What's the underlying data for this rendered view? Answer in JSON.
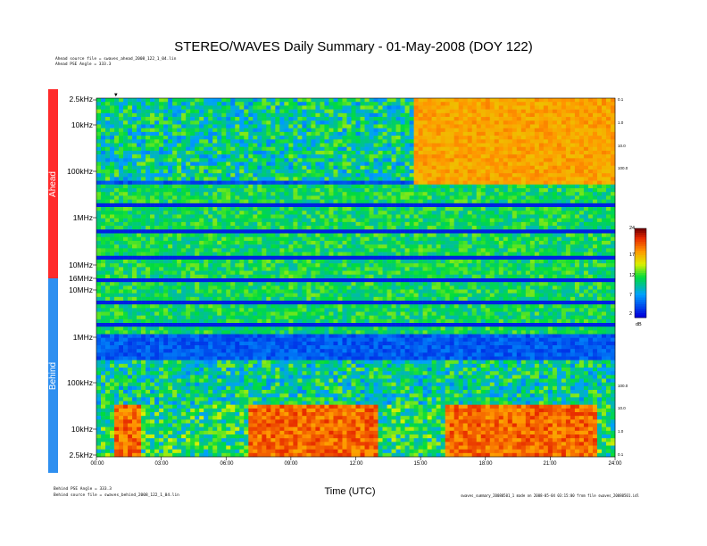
{
  "title": "STEREO/WAVES Daily Summary - 01-May-2008 (DOY 122)",
  "header_notes": [
    "Ahead source file = swaves_ahead_2008_122_1_04.lin",
    "Ahead PSE Angle = 333.3"
  ],
  "footer_notes": [
    "Behind PSE Angle = 333.3",
    "Behind source file = swaves_behind_2008_122_1_04.lin"
  ],
  "footer_right": "swaves_summary_20080501_1 made on 2008-05-04 03:15:00 from file swaves_20080501.idl",
  "marker": "▼",
  "chart_data": {
    "type": "heatmap",
    "title": "STEREO/WAVES Daily Summary - 01-May-2008 (DOY 122)",
    "xlabel": "Time (UTC)",
    "x_ticks": [
      "00:00",
      "03:00",
      "06:00",
      "09:00",
      "12:00",
      "15:00",
      "18:00",
      "21:00",
      "24:00"
    ],
    "xlim": [
      0,
      24
    ],
    "panels": [
      {
        "name": "Ahead",
        "color": "#ff2a2a",
        "y_ticks": [
          "2.5kHz",
          "10kHz",
          "100kHz",
          "1MHz",
          "10MHz",
          "16MHz"
        ],
        "scale": "log",
        "right_ticks": [
          "0.1",
          "1.0",
          "10.0",
          "100.0"
        ]
      },
      {
        "name": "Behind",
        "color": "#2e8ff0",
        "y_ticks": [
          "10MHz",
          "1MHz",
          "100kHz",
          "10kHz",
          "2.5kHz"
        ],
        "scale": "log",
        "right_ticks": [
          "100.0",
          "10.0",
          "1.0",
          "0.1"
        ]
      }
    ],
    "colorbar": {
      "unit": "dB",
      "ticks": [
        "24",
        "17",
        "12",
        "7",
        "2"
      ],
      "range": [
        2,
        24
      ]
    },
    "features": {
      "ahead_high_intensity_start_hour": 14.5,
      "behind_high_intensity_ranges_hours": [
        [
          0.8,
          2.0
        ],
        [
          7.0,
          13.0
        ],
        [
          16.0,
          23.0
        ]
      ]
    }
  }
}
